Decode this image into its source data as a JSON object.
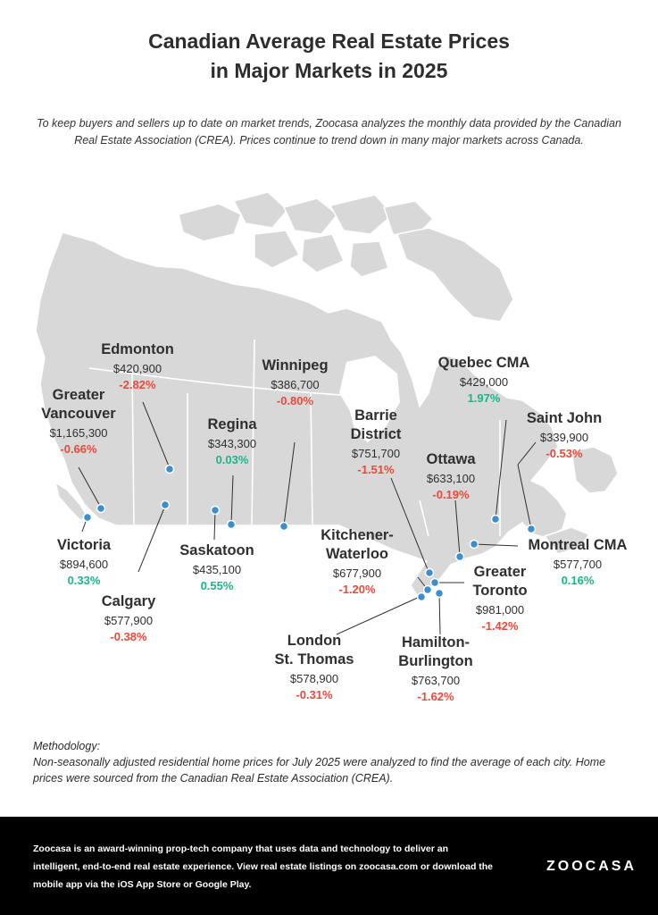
{
  "title_line1": "Canadian Average Real Estate Prices",
  "title_line2": "in Major Markets in 2025",
  "intro": "To keep buyers and sellers up to date on market trends, Zoocasa analyzes the monthly data provided by the Canadian Real Estate Association (CREA). Prices continue to trend down in many major markets across Canada.",
  "colors": {
    "map_fill": "#d8d8d8",
    "border": "#ffffff",
    "marker": "#3b8fd0",
    "negative": "#e84a3c",
    "positive": "#1bb58a"
  },
  "cities": {
    "edmonton": {
      "name": "Edmonton",
      "price": "$420,900",
      "change": "-2.82%"
    },
    "winnipeg": {
      "name": "Winnipeg",
      "price": "$386,700",
      "change": "-0.80%"
    },
    "quebec": {
      "name": "Quebec CMA",
      "price": "$429,000",
      "change": "1.97%"
    },
    "vancouver": {
      "name1": "Greater",
      "name2": "Vancouver",
      "price": "$1,165,300",
      "change": "-0.66%"
    },
    "regina": {
      "name": "Regina",
      "price": "$343,300",
      "change": "0.03%"
    },
    "barrie": {
      "name1": "Barrie",
      "name2": "District",
      "price": "$751,700",
      "change": "-1.51%"
    },
    "saint_john": {
      "name": "Saint John",
      "price": "$339,900",
      "change": "-0.53%"
    },
    "ottawa": {
      "name": "Ottawa",
      "price": "$633,100",
      "change": "-0.19%"
    },
    "victoria": {
      "name": "Victoria",
      "price": "$894,600",
      "change": "0.33%"
    },
    "saskatoon": {
      "name": "Saskatoon",
      "price": "$435,100",
      "change": "0.55%"
    },
    "kitchener": {
      "name1": "Kitchener-",
      "name2": "Waterloo",
      "price": "$677,900",
      "change": "-1.20%"
    },
    "montreal": {
      "name": "Montreal CMA",
      "price": "$577,700",
      "change": "0.16%"
    },
    "toronto": {
      "name1": "Greater",
      "name2": "Toronto",
      "price": "$981,000",
      "change": "-1.42%"
    },
    "calgary": {
      "name": "Calgary",
      "price": "$577,900",
      "change": "-0.38%"
    },
    "london": {
      "name1": "London",
      "name2": "St. Thomas",
      "price": "$578,900",
      "change": "-0.31%"
    },
    "hamilton": {
      "name1": "Hamilton-",
      "name2": "Burlington",
      "price": "$763,700",
      "change": "-1.62%"
    }
  },
  "methodology_label": "Methodology:",
  "methodology_text": "Non-seasonally adjusted residential home prices for July 2025 were analyzed to find the average of each city. Home prices were sourced from the Canadian Real Estate Association (CREA).",
  "footer_text": "Zoocasa is an award-winning prop-tech company that uses data and technology to deliver an intelligent, end-to-end real estate experience. View real estate listings on zoocasa.com or download the mobile app via the iOS App Store or Google Play.",
  "logo": "ZOOCASA"
}
